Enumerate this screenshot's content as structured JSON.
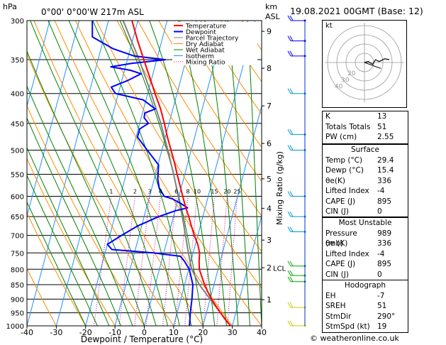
{
  "header": {
    "location": "0°00'  0°00'W  217m  ASL",
    "datetime": "19.08.2021  00GMT  (Base: 12)",
    "hpa_unit": "hPa",
    "km_unit": "km",
    "asl_unit": "ASL"
  },
  "chart_data": {
    "type": "skew-t log-p",
    "xlabel": "Dewpoint / Temperature (°C)",
    "ylabel_right": "Mixing Ratio (g/kg)",
    "x_ticks": [
      -40,
      -30,
      -20,
      -10,
      0,
      10,
      20,
      30,
      40
    ],
    "x_range": [
      -40,
      40
    ],
    "pressure_levels": [
      300,
      350,
      400,
      450,
      500,
      550,
      600,
      650,
      700,
      750,
      800,
      850,
      900,
      950,
      1000
    ],
    "km_ticks": [
      {
        "label": "9",
        "p": 313
      },
      {
        "label": "8",
        "p": 362
      },
      {
        "label": "7",
        "p": 420
      },
      {
        "label": "6",
        "p": 487
      },
      {
        "label": "5",
        "p": 560
      },
      {
        "label": "4",
        "p": 629
      },
      {
        "label": "3",
        "p": 713
      },
      {
        "label": "2",
        "p": 795
      },
      {
        "label": "1",
        "p": 902
      }
    ],
    "lcl": {
      "label": "LCL",
      "p": 796
    },
    "mixing_ratio_labels": [
      "1",
      "2",
      "3",
      "4",
      "6",
      "8",
      "10",
      "15",
      "20",
      "25"
    ],
    "mixing_ratio_values": [
      1,
      2,
      3,
      4,
      6,
      8,
      10,
      15,
      20,
      25
    ],
    "legend": [
      "Temperature",
      "Dewpoint",
      "Parcel Trajectory",
      "Dry Adiabat",
      "Wet Adiabat",
      "Isotherm",
      "Mixing Ratio"
    ],
    "colors": {
      "temperature": "#ff0000",
      "dewpoint": "#0000ff",
      "parcel": "#808080",
      "dry_adiabat": "#ff8c00",
      "wet_adiabat": "#008000",
      "isotherm": "#1e90ff",
      "mixing_ratio": "#cc0099"
    },
    "temperature_profile": [
      [
        1000,
        29.4
      ],
      [
        975,
        27.0
      ],
      [
        950,
        24.8
      ],
      [
        925,
        22.6
      ],
      [
        900,
        20.5
      ],
      [
        875,
        18.6
      ],
      [
        850,
        16.8
      ],
      [
        825,
        15.2
      ],
      [
        800,
        13.6
      ],
      [
        775,
        12.8
      ],
      [
        750,
        12.2
      ],
      [
        725,
        10.8
      ],
      [
        700,
        8.8
      ],
      [
        675,
        7.0
      ],
      [
        650,
        5.2
      ],
      [
        625,
        3.2
      ],
      [
        600,
        1.3
      ],
      [
        575,
        -0.6
      ],
      [
        550,
        -2.6
      ],
      [
        525,
        -4.6
      ],
      [
        500,
        -6.9
      ],
      [
        475,
        -9.3
      ],
      [
        450,
        -11.6
      ],
      [
        425,
        -14.2
      ],
      [
        400,
        -17.5
      ],
      [
        375,
        -20.8
      ],
      [
        350,
        -24.4
      ],
      [
        325,
        -28.2
      ],
      [
        300,
        -32.0
      ]
    ],
    "dewpoint_profile": [
      [
        1000,
        15.4
      ],
      [
        950,
        14.5
      ],
      [
        900,
        13.8
      ],
      [
        850,
        12.8
      ],
      [
        800,
        10.2
      ],
      [
        775,
        7.8
      ],
      [
        760,
        6.0
      ],
      [
        750,
        -3.5
      ],
      [
        740,
        -18.0
      ],
      [
        725,
        -20.0
      ],
      [
        700,
        -16.0
      ],
      [
        675,
        -11.5
      ],
      [
        650,
        -5.0
      ],
      [
        635,
        0.2
      ],
      [
        628,
        4.0
      ],
      [
        618,
        1.5
      ],
      [
        606,
        -2.0
      ],
      [
        600,
        -5.0
      ],
      [
        580,
        -7.5
      ],
      [
        560,
        -8.8
      ],
      [
        530,
        -9.8
      ],
      [
        500,
        -15.0
      ],
      [
        475,
        -19.5
      ],
      [
        460,
        -19.5
      ],
      [
        450,
        -17.0
      ],
      [
        440,
        -19.0
      ],
      [
        432,
        -19.2
      ],
      [
        425,
        -16.0
      ],
      [
        410,
        -21.0
      ],
      [
        400,
        -31.0
      ],
      [
        390,
        -33.0
      ],
      [
        380,
        -28.0
      ],
      [
        370,
        -24.0
      ],
      [
        365,
        -28.0
      ],
      [
        360,
        -35.0
      ],
      [
        355,
        -28.0
      ],
      [
        350,
        -17.0
      ],
      [
        345,
        -28.0
      ],
      [
        335,
        -36.0
      ],
      [
        320,
        -44.0
      ],
      [
        300,
        -45.5
      ]
    ],
    "parcel_profile": [
      [
        1000,
        29.4
      ],
      [
        950,
        24.8
      ],
      [
        900,
        20.0
      ],
      [
        850,
        15.0
      ],
      [
        800,
        11.0
      ],
      [
        750,
        8.4
      ],
      [
        700,
        5.8
      ],
      [
        650,
        3.0
      ],
      [
        600,
        -0.2
      ],
      [
        550,
        -3.8
      ],
      [
        500,
        -8.0
      ],
      [
        450,
        -12.8
      ],
      [
        400,
        -18.8
      ],
      [
        350,
        -26.0
      ],
      [
        300,
        -35.0
      ]
    ],
    "wind_barbs": [
      {
        "p": 300,
        "color": "#0000ff"
      },
      {
        "p": 325,
        "color": "#0000ff"
      },
      {
        "p": 345,
        "color": "#0000ff"
      },
      {
        "p": 400,
        "color": "#0099cc"
      },
      {
        "p": 470,
        "color": "#0099cc"
      },
      {
        "p": 500,
        "color": "#0099cc"
      },
      {
        "p": 600,
        "color": "#0099cc"
      },
      {
        "p": 650,
        "color": "#0099cc"
      },
      {
        "p": 690,
        "color": "#0099cc"
      },
      {
        "p": 790,
        "color": "#00aa00"
      },
      {
        "p": 820,
        "color": "#00aa00"
      },
      {
        "p": 840,
        "color": "#00aa00"
      },
      {
        "p": 930,
        "color": "#cccc00"
      },
      {
        "p": 1000,
        "color": "#cccc00"
      }
    ]
  },
  "hodograph": {
    "label": "kt",
    "rings_kt": [
      10,
      20,
      30,
      40
    ],
    "ring_labels": [
      "40",
      "30",
      "20"
    ],
    "points": [
      [
        0,
        0
      ],
      [
        4,
        1
      ],
      [
        9,
        -2
      ],
      [
        12,
        3
      ],
      [
        16,
        1
      ],
      [
        22,
        4
      ],
      [
        27,
        3
      ]
    ],
    "storm_motion": {
      "dir": 290,
      "speed": 19
    }
  },
  "indices": {
    "basic": [
      {
        "label": "K",
        "value": "13"
      },
      {
        "label": "Totals Totals",
        "value": "51"
      },
      {
        "label": "PW (cm)",
        "value": "2.55"
      }
    ],
    "surface_title": "Surface",
    "surface": [
      {
        "label": "Temp (°C)",
        "value": "29.4"
      },
      {
        "label": "Dewp (°C)",
        "value": "15.4"
      },
      {
        "label": "θe(K)",
        "value": "336"
      },
      {
        "label": "Lifted Index",
        "value": "-4"
      },
      {
        "label": "CAPE (J)",
        "value": "895"
      },
      {
        "label": "CIN (J)",
        "value": "0"
      }
    ],
    "unstable_title": "Most Unstable",
    "unstable": [
      {
        "label": "Pressure (mb)",
        "value": "989"
      },
      {
        "label": "θe (K)",
        "value": "336"
      },
      {
        "label": "Lifted Index",
        "value": "-4"
      },
      {
        "label": "CAPE (J)",
        "value": "895"
      },
      {
        "label": "CIN (J)",
        "value": "0"
      }
    ],
    "hodo_title": "Hodograph",
    "hodo": [
      {
        "label": "EH",
        "value": "-7"
      },
      {
        "label": "SREH",
        "value": "51"
      },
      {
        "label": "StmDir",
        "value": "290°"
      },
      {
        "label": "StmSpd (kt)",
        "value": "19"
      }
    ]
  },
  "credit": "© weatheronline.co.uk"
}
